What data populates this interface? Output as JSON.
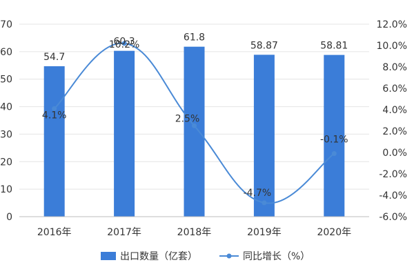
{
  "chart_data": {
    "type": "bar+line",
    "categories": [
      "2016年",
      "2017年",
      "2018年",
      "2019年",
      "2020年"
    ],
    "series": [
      {
        "name": "出口数量（亿套）",
        "type": "bar",
        "axis": "left",
        "values": [
          54.7,
          60.3,
          61.8,
          58.87,
          58.81
        ],
        "labels": [
          "54.7",
          "60.3",
          "61.8",
          "58.87",
          "58.81"
        ],
        "color": "#3b7dd8"
      },
      {
        "name": "同比增长（%）",
        "type": "line",
        "axis": "right",
        "values": [
          4.1,
          10.2,
          2.5,
          -4.7,
          -0.1
        ],
        "labels": [
          "4.1%",
          "10.2%",
          "2.5%",
          "-4.7%",
          "-0.1%"
        ],
        "color": "#4a8ad6"
      }
    ],
    "y_left": {
      "ylim": [
        0,
        70
      ],
      "ticks": [
        0,
        10,
        20,
        30,
        40,
        50,
        60,
        70
      ],
      "tick_labels": [
        "0",
        "10",
        "20",
        "30",
        "40",
        "50",
        "60",
        "70"
      ]
    },
    "y_right": {
      "ylim": [
        -6,
        12
      ],
      "ticks": [
        -6,
        -4,
        -2,
        0,
        2,
        4,
        6,
        8,
        10,
        12
      ],
      "tick_labels": [
        "-6.0%",
        "-4.0%",
        "-2.0%",
        "0.0%",
        "2.0%",
        "4.0%",
        "6.0%",
        "8.0%",
        "10.0%",
        "12.0%"
      ]
    },
    "grid": true,
    "legend_position": "bottom"
  }
}
